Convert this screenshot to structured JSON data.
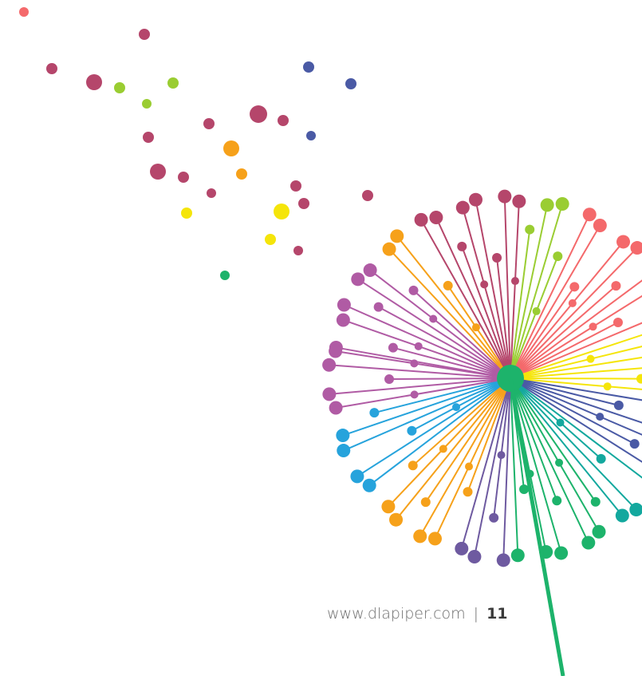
{
  "footer": {
    "url": "www.dlapiper.com",
    "separator": "|",
    "page_number": "11"
  }
}
